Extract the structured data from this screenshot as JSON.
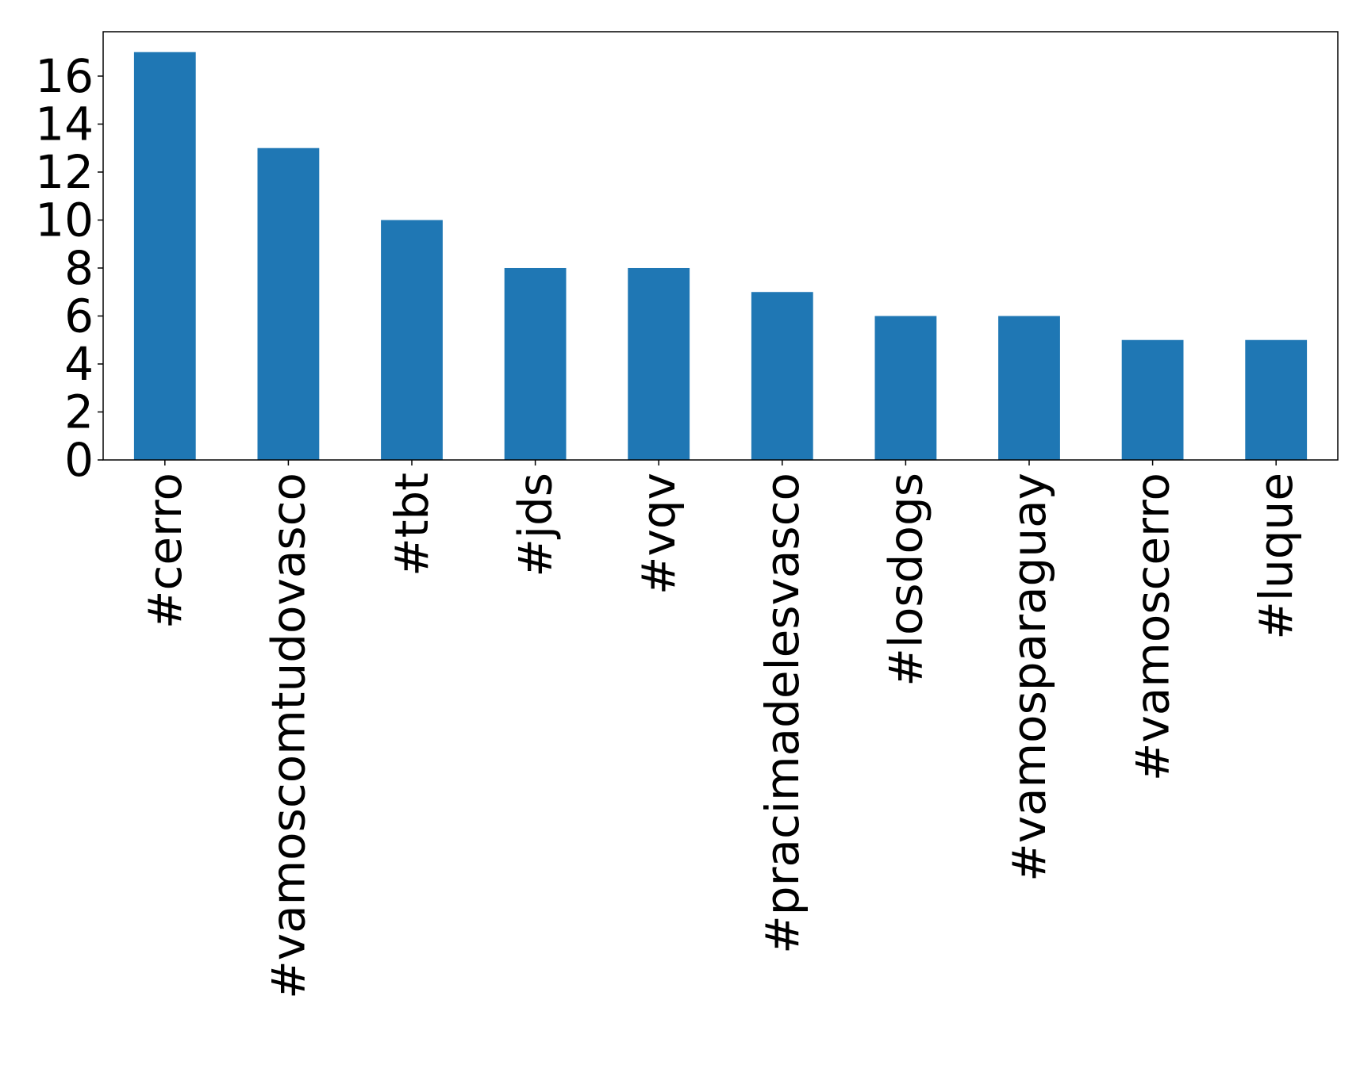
{
  "chart_data": {
    "type": "bar",
    "categories": [
      "#cerro",
      "#vamoscomtudovasco",
      "#tbt",
      "#jds",
      "#vqv",
      "#pracimadelesvasco",
      "#losdogs",
      "#vamosparaguay",
      "#vamoscerro",
      "#luque"
    ],
    "values": [
      17,
      13,
      10,
      8,
      8,
      7,
      6,
      6,
      5,
      5
    ],
    "title": "",
    "xlabel": "",
    "ylabel": "",
    "ylim": [
      0,
      17.85
    ],
    "yticks": [
      0,
      2,
      4,
      6,
      8,
      10,
      12,
      14,
      16
    ],
    "legend": false,
    "grid": false,
    "colors": {
      "bar": "#1f77b4",
      "axis": "#000000",
      "background": "#ffffff"
    }
  }
}
